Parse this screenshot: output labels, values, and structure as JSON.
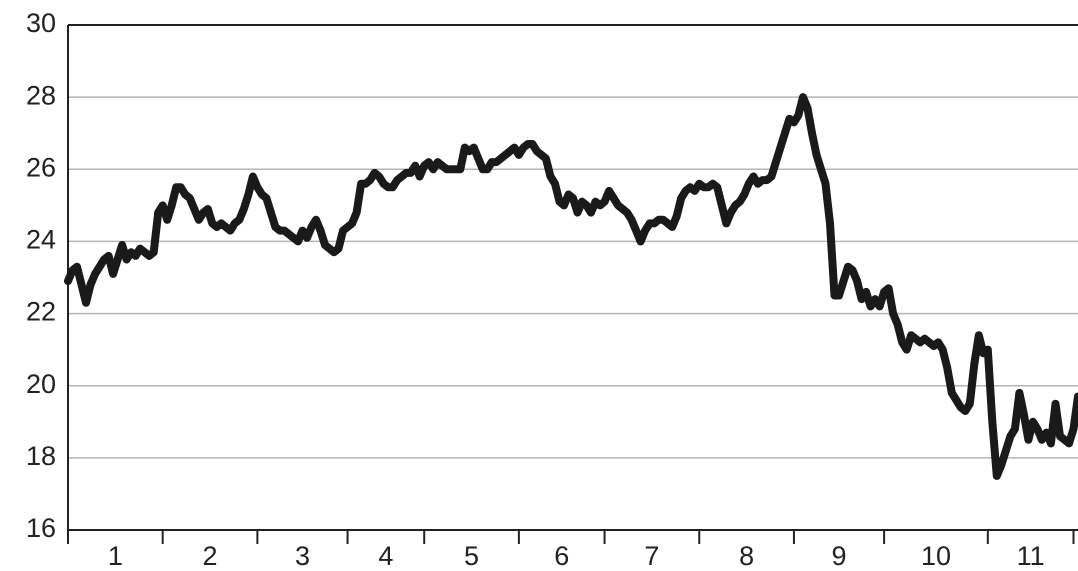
{
  "chart_data": {
    "type": "line",
    "xlim": [
      0,
      224
    ],
    "ylim": [
      16,
      30
    ],
    "yticks": [
      16,
      18,
      20,
      22,
      24,
      26,
      28,
      30
    ],
    "xticks": [
      {
        "value": 10.5,
        "label": "1"
      },
      {
        "value": 31.5,
        "label": "2"
      },
      {
        "value": 52,
        "label": "3"
      },
      {
        "value": 70.5,
        "label": "4"
      },
      {
        "value": 89.5,
        "label": "5"
      },
      {
        "value": 109.5,
        "label": "6"
      },
      {
        "value": 129.5,
        "label": "7"
      },
      {
        "value": 150.5,
        "label": "8"
      },
      {
        "value": 171,
        "label": "9"
      },
      {
        "value": 192.5,
        "label": "10"
      },
      {
        "value": 213.5,
        "label": "11"
      }
    ],
    "xtick_marks": [
      0,
      21,
      42,
      62,
      79,
      100,
      119,
      140,
      161,
      181,
      204,
      223
    ],
    "grid": true,
    "x": [
      0,
      1,
      2,
      3,
      4,
      5,
      6,
      7,
      8,
      9,
      10,
      11,
      12,
      13,
      14,
      15,
      16,
      17,
      18,
      19,
      20,
      21,
      22,
      23,
      24,
      25,
      26,
      27,
      28,
      29,
      30,
      31,
      32,
      33,
      34,
      35,
      36,
      37,
      38,
      39,
      40,
      41,
      42,
      43,
      44,
      45,
      46,
      47,
      48,
      49,
      50,
      51,
      52,
      53,
      54,
      55,
      56,
      57,
      58,
      59,
      60,
      61,
      62,
      63,
      64,
      65,
      66,
      67,
      68,
      69,
      70,
      71,
      72,
      73,
      74,
      75,
      76,
      77,
      78,
      79,
      80,
      81,
      82,
      83,
      84,
      85,
      86,
      87,
      88,
      89,
      90,
      91,
      92,
      93,
      94,
      95,
      96,
      97,
      98,
      99,
      100,
      101,
      102,
      103,
      104,
      105,
      106,
      107,
      108,
      109,
      110,
      111,
      112,
      113,
      114,
      115,
      116,
      117,
      118,
      119,
      120,
      121,
      122,
      123,
      124,
      125,
      126,
      127,
      128,
      129,
      130,
      131,
      132,
      133,
      134,
      135,
      136,
      137,
      138,
      139,
      140,
      141,
      142,
      143,
      144,
      145,
      146,
      147,
      148,
      149,
      150,
      151,
      152,
      153,
      154,
      155,
      156,
      157,
      158,
      159,
      160,
      161,
      162,
      163,
      164,
      165,
      166,
      167,
      168,
      169,
      170,
      171,
      172,
      173,
      174,
      175,
      176,
      177,
      178,
      179,
      180,
      181,
      182,
      183,
      184,
      185,
      186,
      187,
      188,
      189,
      190,
      191,
      192,
      193,
      194,
      195,
      196,
      197,
      198,
      199,
      200,
      201,
      202,
      203,
      204,
      205,
      206,
      207,
      208,
      209,
      210,
      211,
      212,
      213,
      214,
      215,
      216,
      217,
      218,
      219,
      220,
      221,
      222,
      223,
      224
    ],
    "series": [
      {
        "color": "#1a1a1a",
        "values": [
          22.9,
          23.2,
          23.3,
          22.8,
          22.3,
          22.8,
          23.1,
          23.3,
          23.5,
          23.6,
          23.1,
          23.5,
          23.9,
          23.5,
          23.7,
          23.6,
          23.8,
          23.7,
          23.6,
          23.7,
          24.8,
          25.0,
          24.6,
          25.0,
          25.5,
          25.5,
          25.3,
          25.2,
          24.9,
          24.6,
          24.8,
          24.9,
          24.5,
          24.4,
          24.5,
          24.4,
          24.3,
          24.5,
          24.6,
          24.9,
          25.3,
          25.8,
          25.5,
          25.3,
          25.2,
          24.8,
          24.4,
          24.3,
          24.3,
          24.2,
          24.1,
          24.0,
          24.3,
          24.1,
          24.4,
          24.6,
          24.3,
          23.9,
          23.8,
          23.7,
          23.8,
          24.3,
          24.4,
          24.5,
          24.8,
          25.6,
          25.6,
          25.7,
          25.9,
          25.8,
          25.6,
          25.5,
          25.5,
          25.7,
          25.8,
          25.9,
          25.9,
          26.1,
          25.8,
          26.1,
          26.2,
          26.0,
          26.2,
          26.1,
          26.0,
          26.0,
          26.0,
          26.0,
          26.6,
          26.5,
          26.6,
          26.3,
          26.0,
          26.0,
          26.2,
          26.2,
          26.3,
          26.4,
          26.5,
          26.6,
          26.4,
          26.6,
          26.7,
          26.7,
          26.5,
          26.4,
          26.3,
          25.8,
          25.6,
          25.1,
          25.0,
          25.3,
          25.2,
          24.8,
          25.1,
          25.0,
          24.8,
          25.1,
          25.0,
          25.1,
          25.4,
          25.2,
          25.0,
          24.9,
          24.8,
          24.6,
          24.3,
          24.0,
          24.3,
          24.5,
          24.5,
          24.6,
          24.6,
          24.5,
          24.4,
          24.7,
          25.2,
          25.4,
          25.5,
          25.4,
          25.6,
          25.5,
          25.5,
          25.6,
          25.5,
          25.0,
          24.5,
          24.8,
          25.0,
          25.1,
          25.3,
          25.6,
          25.8,
          25.6,
          25.7,
          25.7,
          25.8,
          26.2,
          26.6,
          27.0,
          27.4,
          27.3,
          27.5,
          28.0,
          27.7,
          27.0,
          26.4,
          26.0,
          25.6,
          24.5,
          22.5,
          22.5,
          22.9,
          23.3,
          23.2,
          22.9,
          22.4,
          22.6,
          22.2,
          22.4,
          22.2,
          22.6,
          22.7,
          22.0,
          21.7,
          21.2,
          21.0,
          21.4,
          21.3,
          21.2,
          21.3,
          21.2,
          21.1,
          21.2,
          21.0,
          20.5,
          19.8,
          19.6,
          19.4,
          19.3,
          19.5,
          20.6,
          21.4,
          20.9,
          21.0,
          19.0,
          17.5,
          17.8,
          18.2,
          18.6,
          18.8,
          19.8,
          19.2,
          18.5,
          19.0,
          18.8,
          18.5,
          18.7,
          18.4,
          19.5,
          18.6,
          18.5,
          18.4,
          18.8,
          19.7
        ]
      }
    ]
  }
}
